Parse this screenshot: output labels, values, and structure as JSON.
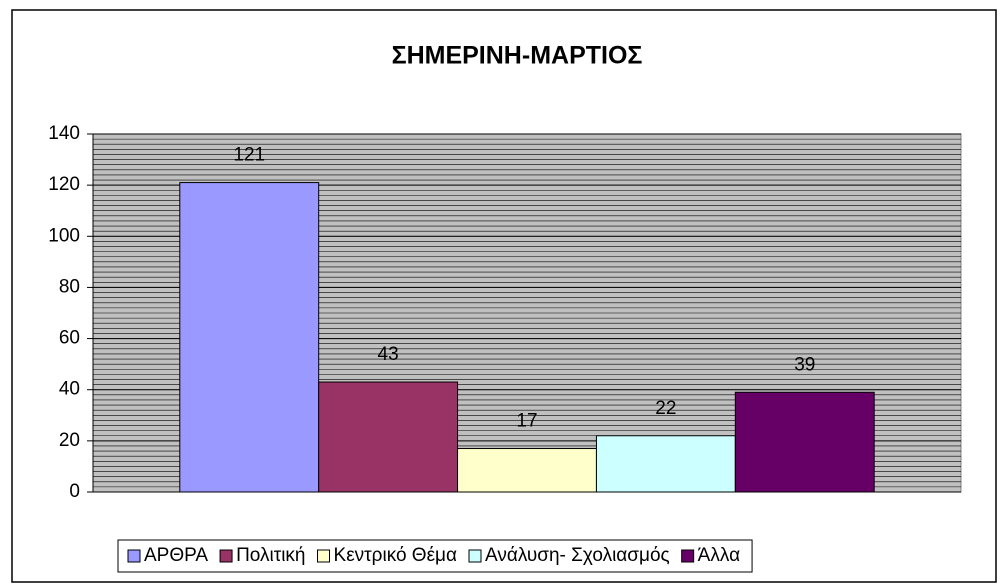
{
  "chart_data": {
    "type": "bar",
    "title": "ΣΗΜΕΡΙΝΗ-ΜΑΡΤΙΟΣ",
    "categories": [
      null
    ],
    "series": [
      {
        "name": "ΑΡΘΡΑ",
        "color": "#9999ff",
        "values": [
          121
        ]
      },
      {
        "name": "Πολιτική",
        "color": "#993366",
        "values": [
          43
        ]
      },
      {
        "name": "Κεντρικό Θέμα",
        "color": "#ffffcc",
        "values": [
          17
        ]
      },
      {
        "name": "Ανάλυση- Σχολιασμός",
        "color": "#ccffff",
        "values": [
          22
        ]
      },
      {
        "name": "Άλλα",
        "color": "#660066",
        "values": [
          39
        ]
      }
    ],
    "ylim": [
      0,
      140
    ],
    "yticks": [
      0,
      20,
      40,
      60,
      80,
      100,
      120,
      140
    ],
    "minor_ytick_step": 2,
    "grid": true,
    "legend": "bottom",
    "plot_background": "#c0c0c0"
  }
}
